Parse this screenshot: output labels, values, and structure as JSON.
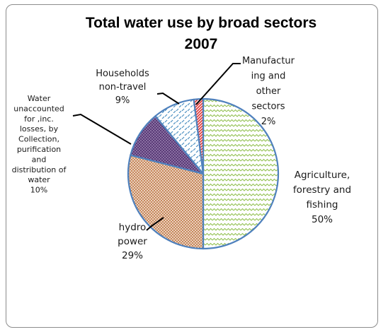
{
  "chart_data": {
    "type": "pie",
    "title_lines": [
      "Total water use by broad sectors",
      "2007"
    ],
    "slices": [
      {
        "label": "Agriculture, forestry and fishing",
        "label_lines": [
          "Agriculture,",
          "forestry and",
          "fishing",
          "50%"
        ],
        "value": 50,
        "pattern": "green-wave",
        "color": "#92c050"
      },
      {
        "label": "hydro power",
        "label_lines": [
          "hydro",
          "power",
          "29%"
        ],
        "value": 29,
        "pattern": "orange-cross",
        "color": "#c0794a"
      },
      {
        "label": "Water unaccounted for ,inc. losses, by Collection, purification and distribution of water",
        "label_lines": [
          "Water",
          "unaccounted",
          "for ,inc.",
          "losses, by",
          "Collection,",
          "purification",
          "and",
          "distribution of",
          "water",
          "10%"
        ],
        "value": 10,
        "pattern": "purple-dots",
        "color": "#5a3a78"
      },
      {
        "label": "Households non-travel",
        "label_lines": [
          "Households",
          "non-travel",
          "9%"
        ],
        "value": 9,
        "pattern": "blue-dash",
        "color": "#4a8ec0"
      },
      {
        "label": "Manufacturing and other sectors",
        "label_lines": [
          "Manufactur",
          "ing and",
          "other",
          "sectors",
          "2%"
        ],
        "value": 2,
        "pattern": "red-stripe",
        "color": "#e03030"
      }
    ],
    "legend": "none",
    "outline_color": "#4f81bd"
  }
}
